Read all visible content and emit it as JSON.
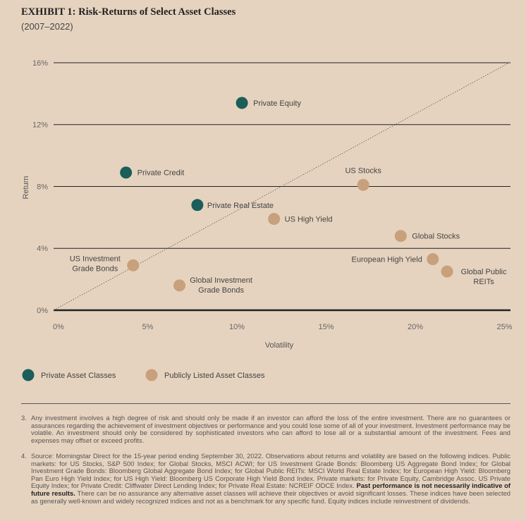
{
  "title": "EXHIBIT 1: Risk-Returns of Select Asset Classes",
  "subtitle": "(2007–2022)",
  "colors": {
    "background": "#e6d3bf",
    "private": "#1b5e5a",
    "public": "#c8a07b"
  },
  "chart_data": {
    "type": "scatter",
    "xlabel": "Volatility",
    "ylabel": "Return",
    "xlim": [
      0,
      25
    ],
    "ylim": [
      0,
      16
    ],
    "x_ticks": [
      "0%",
      "5%",
      "10%",
      "15%",
      "20%",
      "25%"
    ],
    "y_ticks": [
      "0%",
      "4%",
      "8%",
      "12%",
      "16%"
    ],
    "grid": "horizontal",
    "reference_line": "diagonal y = x (dotted)",
    "legend_position": "bottom-left",
    "series": [
      {
        "name": "Private Asset Classes",
        "color": "#1b5e5a",
        "points": [
          {
            "label": [
              "Private Equity"
            ],
            "x": 10.4,
            "y": 13.4
          },
          {
            "label": [
              "Private Credit"
            ],
            "x": 3.9,
            "y": 8.9
          },
          {
            "label": [
              "Private Real Estate"
            ],
            "x": 7.9,
            "y": 6.8
          }
        ]
      },
      {
        "name": "Publicly Listed Asset Classes",
        "color": "#c8a07b",
        "points": [
          {
            "label": [
              "US Stocks"
            ],
            "x": 17.2,
            "y": 8.1
          },
          {
            "label": [
              "US High Yield"
            ],
            "x": 12.2,
            "y": 5.9
          },
          {
            "label": [
              "Global Stocks"
            ],
            "x": 19.3,
            "y": 4.8
          },
          {
            "label": [
              "European High Yield"
            ],
            "x": 21.1,
            "y": 3.3
          },
          {
            "label": [
              "Global Public",
              "REITs"
            ],
            "x": 21.9,
            "y": 2.5
          },
          {
            "label": [
              "US Investment",
              "Grade Bonds"
            ],
            "x": 4.3,
            "y": 2.9
          },
          {
            "label": [
              "Global Investment",
              "Grade Bonds"
            ],
            "x": 6.9,
            "y": 1.6
          }
        ]
      }
    ]
  },
  "footnotes": [
    {
      "num": "3.",
      "text": "Any investment involves a high degree of risk and should only be made if an investor can afford the loss of the entire investment. There are no guarantees or assurances regarding the achievement of investment objectives or performance and you could lose some of all of your investment. Investment performance may be volatile. An investment should only be considered by sophisticated investors who can afford to lose all or a substantial amount of the investment. Fees and expenses may offset or exceed profits."
    },
    {
      "num": "4.",
      "text": "Source: Morningstar Direct for the 15-year period ending September 30, 2022. Observations about returns and volatility are based on the following indices. Public markets: for US Stocks, S&P 500 Index; for Global Stocks, MSCI ACWI; for US Investment Grade Bonds: Bloomberg US Aggregate Bond Index; for Global Investment Grade Bonds: Bloomberg Global Aggregate Bond Index; for Global Public REITs: MSCI World Real Estate Index; for European High Yield: Bloomberg Pan Euro High Yield Index; for US High Yield: Bloomberg US Corporate High Yield Bond Index. Private markets: for Private Equity, Cambridge Assoc. US Private Equity Index; for Private Credit: Cliffwater Direct Lending Index; for Private Real Estate: NCREIF ODCE Index.",
      "bold": "Past performance is not necessarily indicative of future results.",
      "text2": "There can be no assurance any alternative asset classes will achieve their objectives or avoid significant losses. These indices have been selected as generally well-known and widely recognized indices and not as a benchmark for any specific fund. Equity indices include reinvestment of dividends."
    }
  ]
}
